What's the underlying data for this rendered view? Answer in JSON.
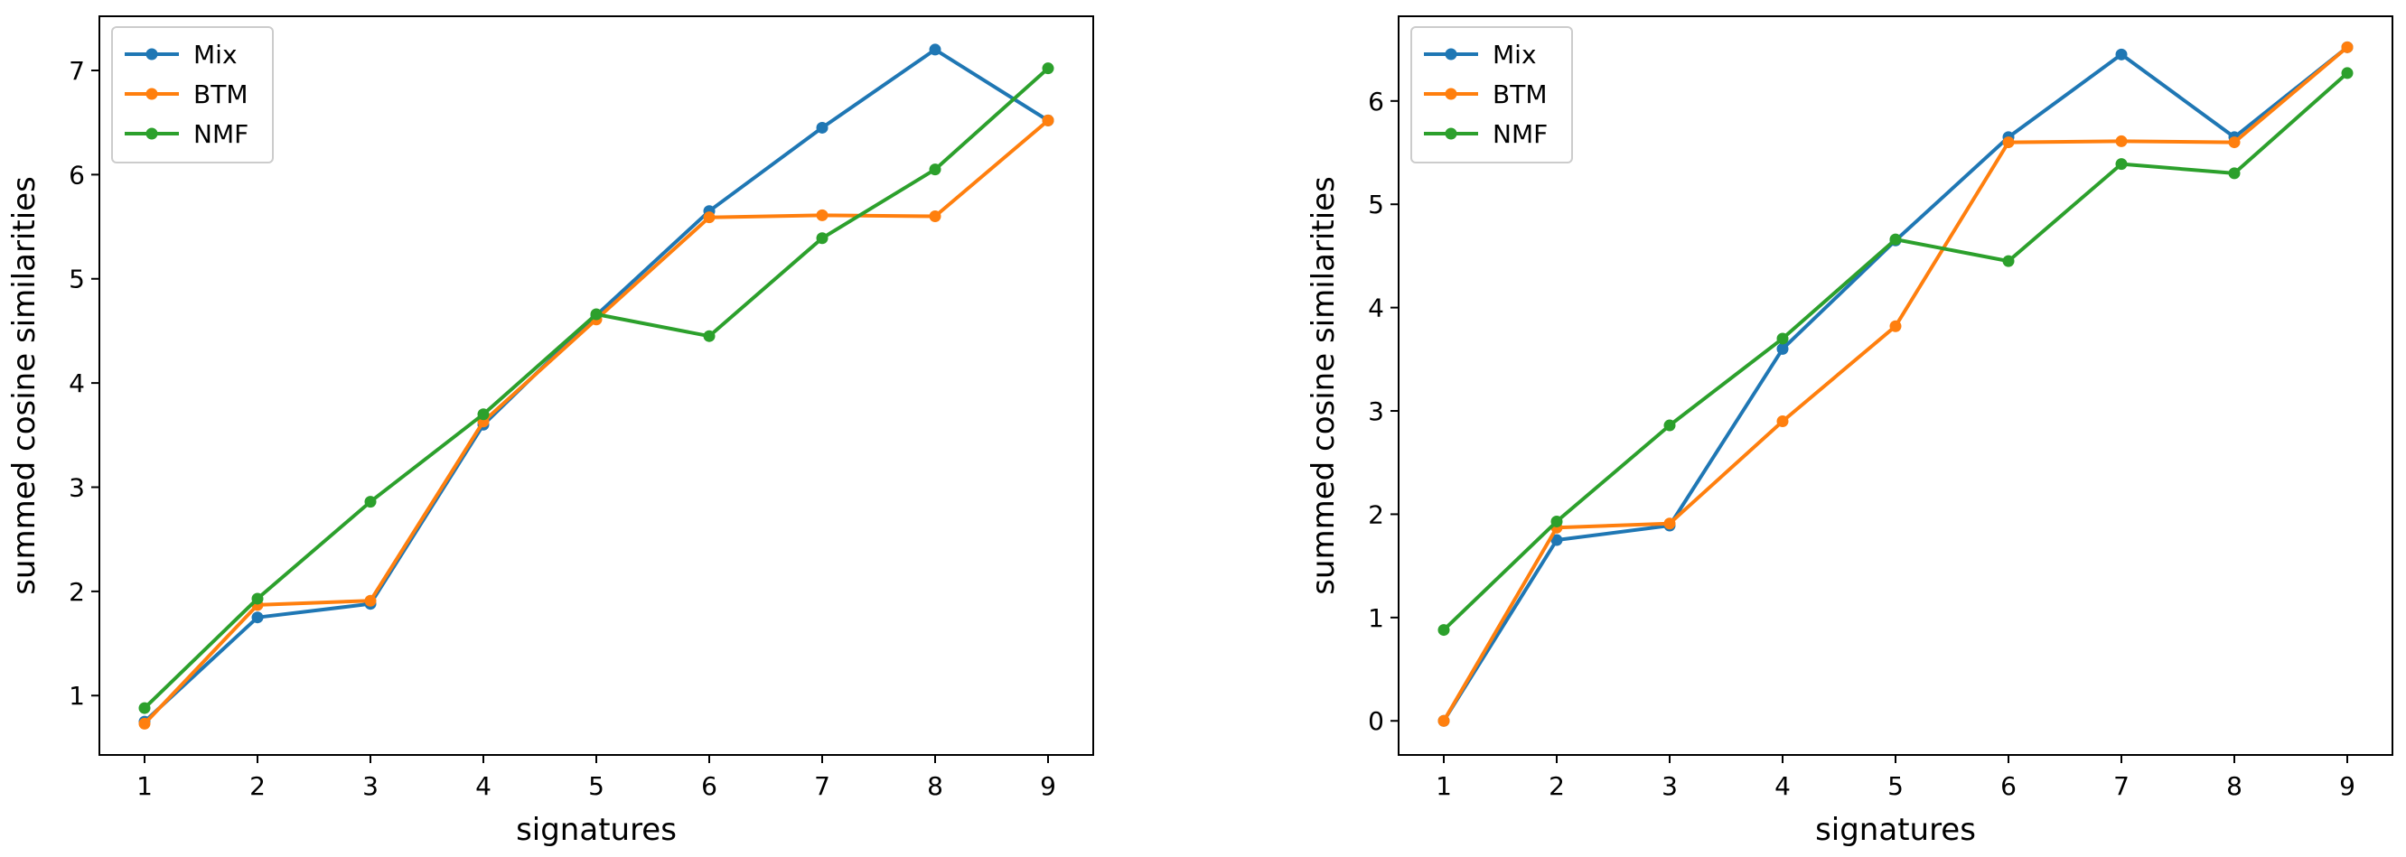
{
  "chart_data": [
    {
      "type": "line",
      "title": "",
      "xlabel": "signatures",
      "ylabel": "summed cosine similarities",
      "x": [
        1,
        2,
        3,
        4,
        5,
        6,
        7,
        8,
        9
      ],
      "xlim": [
        0.6,
        9.4
      ],
      "ylim": [
        0.43,
        7.52
      ],
      "xticks": [
        1,
        2,
        3,
        4,
        5,
        6,
        7,
        8,
        9
      ],
      "yticks": [
        1,
        2,
        3,
        4,
        5,
        6,
        7
      ],
      "legend_position": "upper-left",
      "series": [
        {
          "name": "Mix",
          "color": "#1f77b4",
          "values": [
            0.75,
            1.75,
            1.88,
            3.6,
            4.65,
            5.65,
            6.45,
            7.2,
            6.52
          ]
        },
        {
          "name": "BTM",
          "color": "#ff7f0e",
          "values": [
            0.73,
            1.87,
            1.91,
            3.63,
            4.61,
            5.59,
            5.61,
            5.6,
            6.52
          ]
        },
        {
          "name": "NMF",
          "color": "#2ca02c",
          "values": [
            0.88,
            1.93,
            2.86,
            3.7,
            4.66,
            4.45,
            5.39,
            6.05,
            7.02
          ]
        }
      ]
    },
    {
      "type": "line",
      "title": "",
      "xlabel": "signatures",
      "ylabel": "summed cosine similarities",
      "x": [
        1,
        2,
        3,
        4,
        5,
        6,
        7,
        8,
        9
      ],
      "xlim": [
        0.6,
        9.4
      ],
      "ylim": [
        -0.33,
        6.82
      ],
      "xticks": [
        1,
        2,
        3,
        4,
        5,
        6,
        7,
        8,
        9
      ],
      "yticks": [
        0,
        1,
        2,
        3,
        4,
        5,
        6
      ],
      "legend_position": "upper-left",
      "series": [
        {
          "name": "Mix",
          "color": "#1f77b4",
          "values": [
            0.0,
            1.75,
            1.89,
            3.6,
            4.65,
            5.65,
            6.45,
            5.65,
            6.52
          ]
        },
        {
          "name": "BTM",
          "color": "#ff7f0e",
          "values": [
            0.0,
            1.87,
            1.91,
            2.9,
            3.82,
            5.6,
            5.61,
            5.6,
            6.52
          ]
        },
        {
          "name": "NMF",
          "color": "#2ca02c",
          "values": [
            0.88,
            1.93,
            2.86,
            3.7,
            4.66,
            4.45,
            5.39,
            5.3,
            6.27
          ]
        }
      ]
    }
  ]
}
